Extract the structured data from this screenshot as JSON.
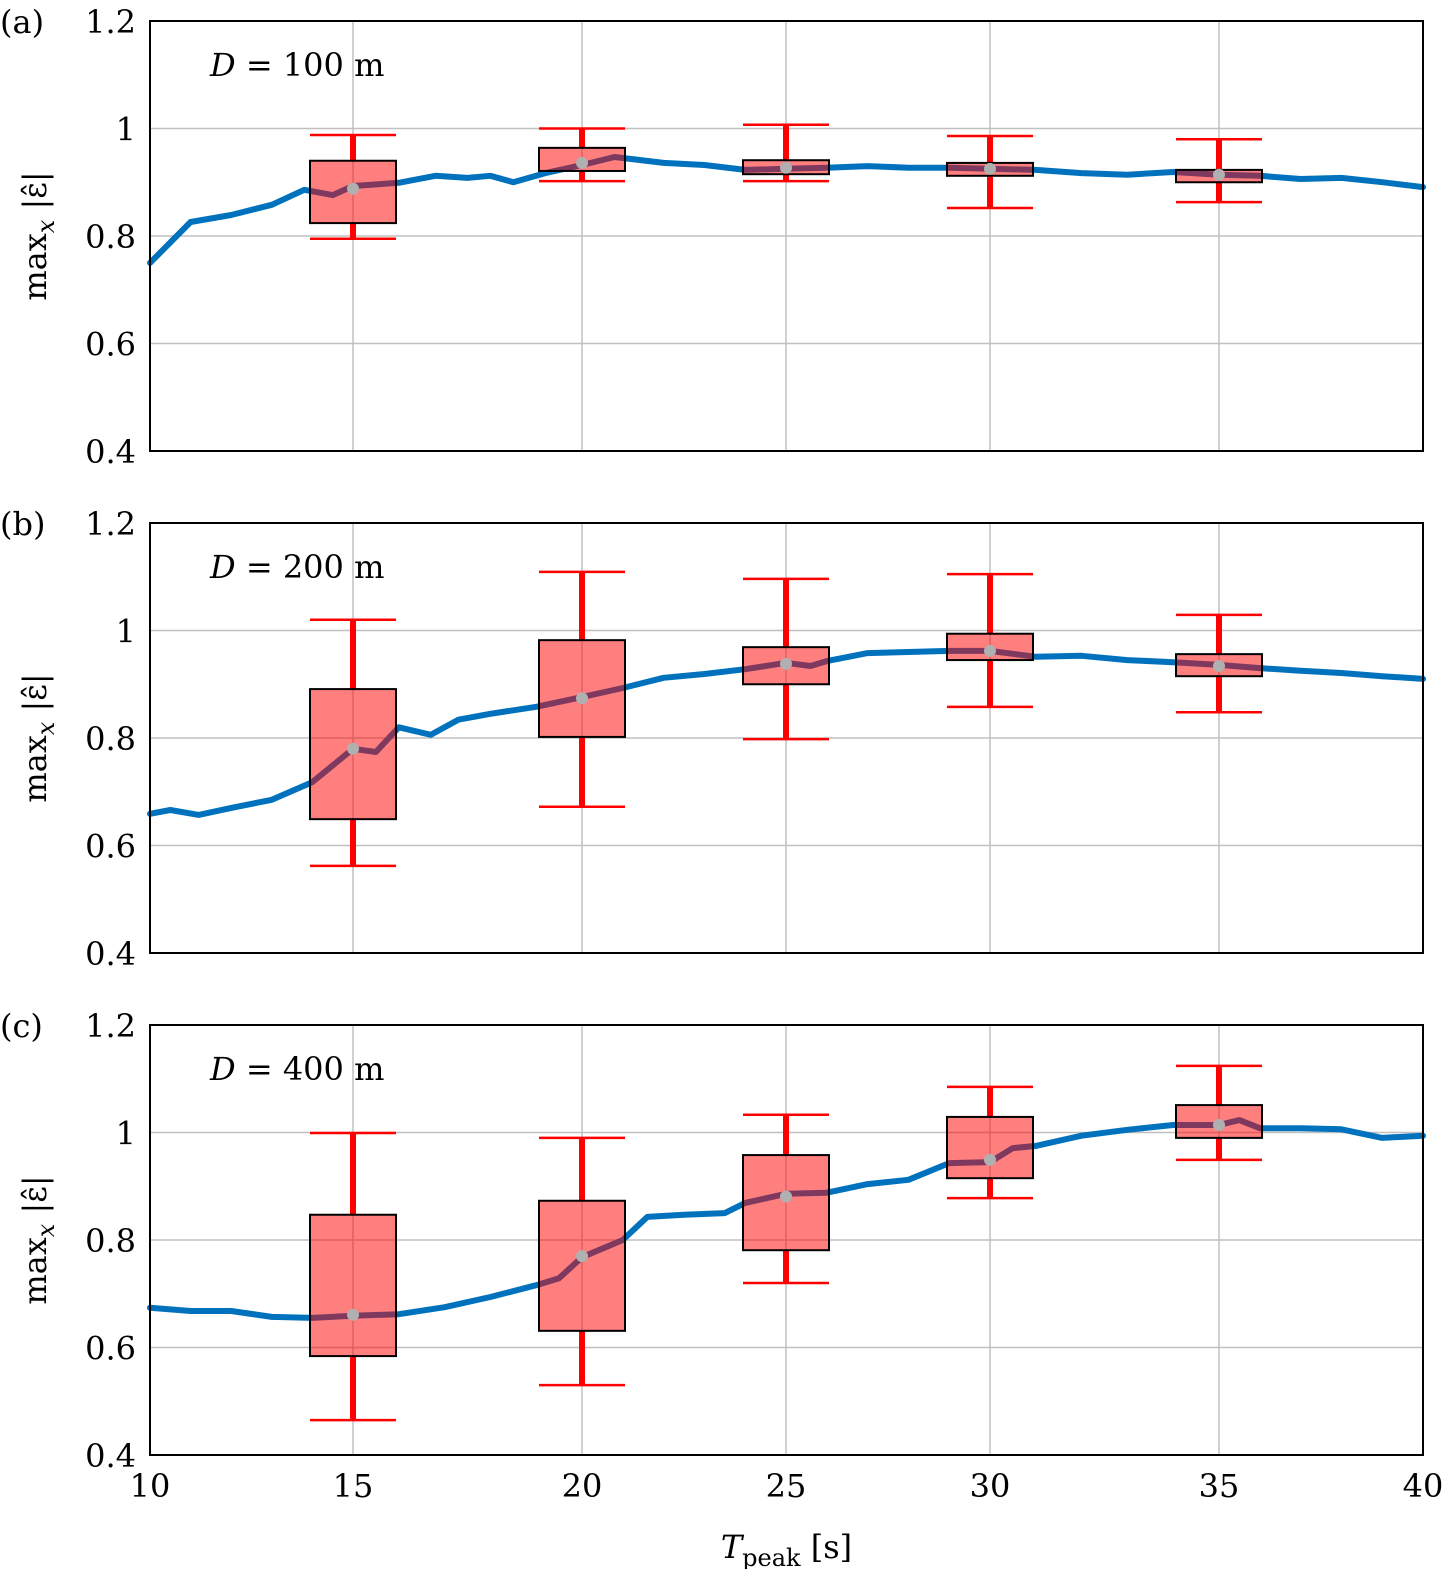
{
  "chart_data": [
    {
      "type": "box",
      "panel_label": "(a)",
      "annotation": {
        "var": "D",
        "eq": " = ",
        "value": "100",
        "unit": " m"
      },
      "ylabel": {
        "main": "max",
        "sub": "x",
        "rest": " |ε̂|"
      },
      "xlim": [
        10,
        40
      ],
      "ylim": [
        0.4,
        1.2
      ],
      "xticks": [
        "10",
        "15",
        "20",
        "25",
        "30",
        "35",
        "40"
      ],
      "yticks": [
        "0.4",
        "0.6",
        "0.8",
        "1",
        "1.2"
      ],
      "grid": true,
      "boxes": [
        {
          "x": 15,
          "whisker_low": 0.795,
          "q1": 0.824,
          "median": 0.888,
          "q3": 0.94,
          "whisker_high": 0.988
        },
        {
          "x": 20,
          "whisker_low": 0.902,
          "q1": 0.921,
          "median": 0.936,
          "q3": 0.964,
          "whisker_high": 1.0
        },
        {
          "x": 25,
          "whisker_low": 0.902,
          "q1": 0.915,
          "median": 0.927,
          "q3": 0.941,
          "whisker_high": 1.007
        },
        {
          "x": 30,
          "whisker_low": 0.852,
          "q1": 0.912,
          "median": 0.925,
          "q3": 0.936,
          "whisker_high": 0.986
        },
        {
          "x": 35,
          "whisker_low": 0.863,
          "q1": 0.9,
          "median": 0.914,
          "q3": 0.923,
          "whisker_high": 0.98
        }
      ],
      "curve": {
        "x": [
          10,
          11,
          12,
          13,
          13.8,
          14.5,
          15,
          16,
          16.8,
          17.5,
          18,
          18.5,
          19.2,
          20,
          20.8,
          22,
          23,
          24,
          25,
          26,
          27,
          28,
          29,
          30,
          31,
          32,
          33,
          34,
          35,
          36,
          37,
          38,
          39,
          40
        ],
        "y": [
          0.75,
          0.826,
          0.839,
          0.858,
          0.886,
          0.876,
          0.893,
          0.899,
          0.912,
          0.908,
          0.912,
          0.9,
          0.917,
          0.932,
          0.947,
          0.936,
          0.932,
          0.923,
          0.925,
          0.927,
          0.93,
          0.927,
          0.927,
          0.925,
          0.923,
          0.917,
          0.914,
          0.919,
          0.914,
          0.912,
          0.906,
          0.908,
          0.9,
          0.891
        ]
      }
    },
    {
      "type": "box",
      "panel_label": "(b)",
      "annotation": {
        "var": "D",
        "eq": " = ",
        "value": "200",
        "unit": " m"
      },
      "ylabel": {
        "main": "max",
        "sub": "x",
        "rest": " |ε̂|"
      },
      "xlim": [
        10,
        40
      ],
      "ylim": [
        0.4,
        1.2
      ],
      "xticks": [
        "10",
        "15",
        "20",
        "25",
        "30",
        "35",
        "40"
      ],
      "yticks": [
        "0.4",
        "0.6",
        "0.8",
        "1",
        "1.2"
      ],
      "grid": true,
      "boxes": [
        {
          "x": 15,
          "whisker_low": 0.562,
          "q1": 0.649,
          "median": 0.78,
          "q3": 0.891,
          "whisker_high": 1.02
        },
        {
          "x": 20,
          "whisker_low": 0.672,
          "q1": 0.802,
          "median": 0.874,
          "q3": 0.982,
          "whisker_high": 1.109
        },
        {
          "x": 25,
          "whisker_low": 0.798,
          "q1": 0.9,
          "median": 0.938,
          "q3": 0.969,
          "whisker_high": 1.096
        },
        {
          "x": 30,
          "whisker_low": 0.858,
          "q1": 0.945,
          "median": 0.962,
          "q3": 0.994,
          "whisker_high": 1.105
        },
        {
          "x": 35,
          "whisker_low": 0.848,
          "q1": 0.915,
          "median": 0.934,
          "q3": 0.956,
          "whisker_high": 1.029
        }
      ],
      "curve": {
        "x": [
          10,
          10.5,
          11.2,
          12,
          13,
          14,
          15,
          15.5,
          16,
          16.7,
          17.3,
          18,
          19,
          20,
          21,
          22,
          23,
          24,
          25,
          25.6,
          26,
          27,
          28,
          29,
          30,
          31,
          32,
          33,
          34,
          35,
          36,
          37,
          38,
          39,
          40
        ],
        "y": [
          0.659,
          0.666,
          0.657,
          0.67,
          0.685,
          0.718,
          0.78,
          0.774,
          0.82,
          0.806,
          0.834,
          0.845,
          0.858,
          0.876,
          0.893,
          0.912,
          0.919,
          0.928,
          0.94,
          0.934,
          0.943,
          0.958,
          0.96,
          0.962,
          0.962,
          0.951,
          0.953,
          0.945,
          0.941,
          0.936,
          0.93,
          0.925,
          0.921,
          0.915,
          0.91
        ]
      }
    },
    {
      "type": "box",
      "panel_label": "(c)",
      "annotation": {
        "var": "D",
        "eq": " = ",
        "value": "400",
        "unit": " m"
      },
      "ylabel": {
        "main": "max",
        "sub": "x",
        "rest": " |ε̂|"
      },
      "xlabel": {
        "main": "T",
        "sub": "peak",
        "rest": " [s]"
      },
      "xlim": [
        10,
        40
      ],
      "ylim": [
        0.4,
        1.2
      ],
      "xticks": [
        "10",
        "15",
        "20",
        "25",
        "30",
        "35",
        "40"
      ],
      "yticks": [
        "0.4",
        "0.6",
        "0.8",
        "1",
        "1.2"
      ],
      "grid": true,
      "boxes": [
        {
          "x": 15,
          "whisker_low": 0.465,
          "q1": 0.584,
          "median": 0.661,
          "q3": 0.847,
          "whisker_high": 0.999
        },
        {
          "x": 20,
          "whisker_low": 0.53,
          "q1": 0.631,
          "median": 0.77,
          "q3": 0.873,
          "whisker_high": 0.99
        },
        {
          "x": 25,
          "whisker_low": 0.72,
          "q1": 0.781,
          "median": 0.881,
          "q3": 0.958,
          "whisker_high": 1.033
        },
        {
          "x": 30,
          "whisker_low": 0.878,
          "q1": 0.915,
          "median": 0.949,
          "q3": 1.029,
          "whisker_high": 1.085
        },
        {
          "x": 35,
          "whisker_low": 0.949,
          "q1": 0.99,
          "median": 1.014,
          "q3": 1.051,
          "whisker_high": 1.124
        }
      ],
      "curve": {
        "x": [
          10,
          11,
          12,
          13,
          14,
          15,
          16,
          17,
          18,
          19,
          19.5,
          20,
          21,
          21.6,
          22.5,
          23.5,
          24,
          25,
          26,
          27,
          28,
          29,
          30,
          30.5,
          31,
          32,
          33,
          34,
          35,
          35.5,
          36,
          37,
          38,
          39,
          40
        ],
        "y": [
          0.674,
          0.668,
          0.668,
          0.657,
          0.655,
          0.659,
          0.662,
          0.675,
          0.694,
          0.716,
          0.729,
          0.768,
          0.8,
          0.843,
          0.847,
          0.85,
          0.869,
          0.886,
          0.888,
          0.904,
          0.912,
          0.943,
          0.945,
          0.971,
          0.975,
          0.994,
          1.005,
          1.014,
          1.014,
          1.023,
          1.008,
          1.008,
          1.006,
          0.99,
          0.994
        ]
      }
    }
  ],
  "colors": {
    "curve": "#0072bd",
    "box_fill": "#ff0000",
    "whisker": "#ff0000",
    "median_dot": "#b0b0b0",
    "grid": "#c0c0c0"
  }
}
